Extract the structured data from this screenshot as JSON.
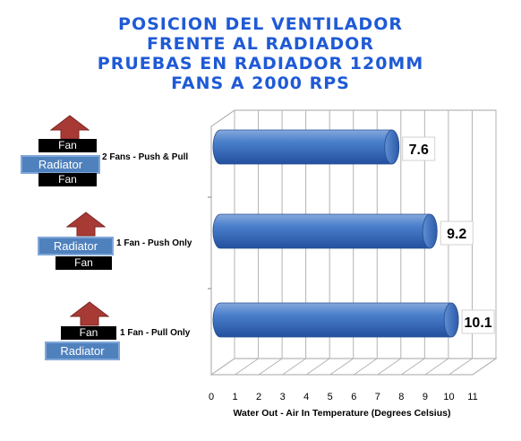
{
  "title_lines": [
    "POSICION DEL VENTILADOR",
    "FRENTE AL RADIADOR",
    "PRUEBAS EN RADIADOR 120MM",
    "FANS A 2000 RPS"
  ],
  "diagram_text": {
    "fan": "Fan",
    "radiator": "Radiator"
  },
  "colors": {
    "title": "#1f5ad6",
    "bar": "#3f73c2",
    "fan_block": "#000000",
    "radiator_block": "#4f81bd",
    "arrow": "#a83a36"
  },
  "chart_data": {
    "type": "bar",
    "orientation": "horizontal",
    "categories": [
      "2 Fans - Push & Pull",
      "1 Fan - Push Only",
      "1 Fan - Pull Only"
    ],
    "values": [
      7.6,
      9.2,
      10.1
    ],
    "value_labels": [
      "7.6",
      "9.2",
      "10.1"
    ],
    "xlabel": "Water Out - Air In Temperature (Degrees Celsius)",
    "xlim": [
      0,
      11
    ],
    "xticks": [
      "0",
      "1",
      "2",
      "3",
      "4",
      "5",
      "6",
      "7",
      "8",
      "9",
      "10",
      "11"
    ],
    "grid": true,
    "style": "3d-cylinder"
  }
}
